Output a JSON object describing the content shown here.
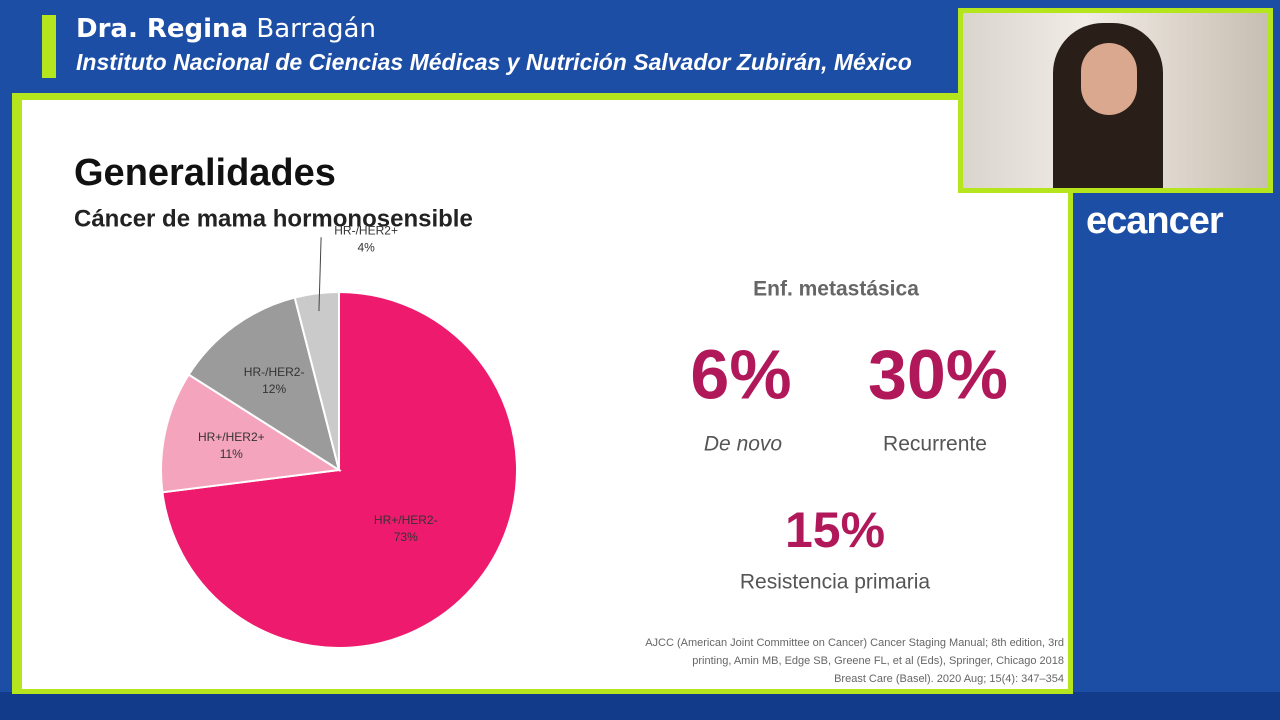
{
  "header": {
    "name_bold": "Dra. Regina",
    "name_rest": "Barragán",
    "institution": "Instituto Nacional de Ciencias Médicas y Nutrición Salvador Zubirán, México"
  },
  "brand": "ecancer",
  "slide": {
    "title": "Generalidades",
    "subtitle": "Cáncer de mama hormonosensible",
    "stats_heading": "Enf. metastásica",
    "stats": [
      {
        "value": "6%",
        "label": "De novo"
      },
      {
        "value": "30%",
        "label": "Recurrente"
      },
      {
        "value": "15%",
        "label": "Resistencia primaria"
      }
    ],
    "citation": [
      "AJCC (American Joint Committee on Cancer) Cancer Staging Manual; 8th edition, 3rd",
      "printing, Amin MB, Edge SB, Greene FL, et al (Eds), Springer, Chicago 2018",
      "Breast Care (Basel). 2020 Aug; 15(4): 347–354"
    ]
  },
  "chart_data": {
    "type": "pie",
    "categories": [
      "HR+/HER2-",
      "HR+/HER2+",
      "HR-/HER2-",
      "HR-/HER2+"
    ],
    "values": [
      73,
      11,
      12,
      4
    ],
    "value_labels": [
      "73%",
      "11%",
      "12%",
      "4%"
    ],
    "colors": [
      "#ee1a6e",
      "#f5a4be",
      "#9b9b9b",
      "#cacaca"
    ]
  }
}
